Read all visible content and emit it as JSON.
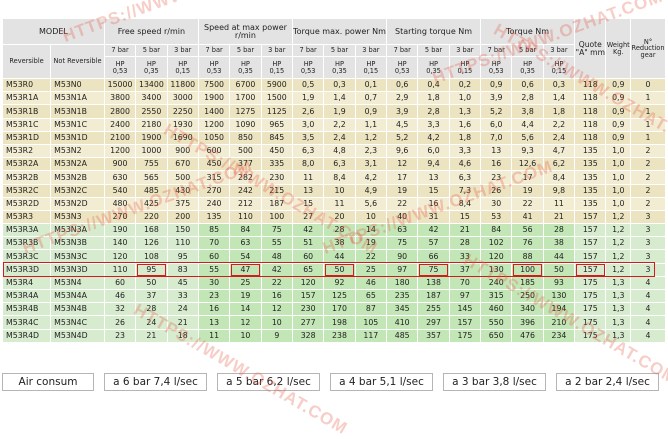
{
  "header": {
    "model": "MODEL",
    "groups": {
      "free_speed": "Free speed r/min",
      "speed_max_power": "Speed at max power r/min",
      "torque_max_power": "Torque max. power Nm",
      "starting_torque": "Starting torque Nm",
      "torque": "Torque Nm",
      "quote": "Quote \"A\" mm",
      "weight": "Weight Kg.",
      "reduction": "N° Reduction gear"
    },
    "reversible": "Reversible",
    "not_reversible": "Not Reversible",
    "pressures": [
      "7 bar",
      "5 bar",
      "3 bar"
    ],
    "hp": [
      "HP",
      "HP",
      "HP"
    ],
    "hp_values": [
      "0,53",
      "0,35",
      "0,15"
    ]
  },
  "rows": [
    {
      "rev": "M53R0",
      "notrev": "M53N0",
      "v": [
        "15000",
        "13400",
        "11800",
        "7500",
        "6700",
        "5900",
        "0,5",
        "0,3",
        "0,1",
        "0,6",
        "0,4",
        "0,2",
        "0,9",
        "0,6",
        "0,3",
        "118",
        "0,9",
        "0"
      ],
      "style": "cream"
    },
    {
      "rev": "M53R1A",
      "notrev": "M53N1A",
      "v": [
        "3800",
        "3400",
        "3000",
        "1900",
        "1700",
        "1500",
        "1,9",
        "1,4",
        "0,7",
        "2,9",
        "1,8",
        "1,0",
        "3,9",
        "2,8",
        "1,4",
        "118",
        "0,9",
        "1"
      ],
      "style": "light"
    },
    {
      "rev": "M53R1B",
      "notrev": "M53N1B",
      "v": [
        "2800",
        "2550",
        "2250",
        "1400",
        "1275",
        "1125",
        "2,6",
        "1,9",
        "0,9",
        "3,9",
        "2,8",
        "1,3",
        "5,2",
        "3,8",
        "1,8",
        "118",
        "0,9",
        "1"
      ],
      "style": "cream"
    },
    {
      "rev": "M53R1C",
      "notrev": "M53N1C",
      "v": [
        "2400",
        "2180",
        "1930",
        "1200",
        "1090",
        "965",
        "3,0",
        "2,2",
        "1,1",
        "4,5",
        "3,3",
        "1,6",
        "6,0",
        "4,4",
        "2,2",
        "118",
        "0,9",
        "1"
      ],
      "style": "light"
    },
    {
      "rev": "M53R1D",
      "notrev": "M53N1D",
      "v": [
        "2100",
        "1900",
        "1690",
        "1050",
        "850",
        "845",
        "3,5",
        "2,4",
        "1,2",
        "5,2",
        "4,2",
        "1,8",
        "7,0",
        "5,6",
        "2,4",
        "118",
        "0,9",
        "1"
      ],
      "style": "cream"
    },
    {
      "rev": "M53R2",
      "notrev": "M53N2",
      "v": [
        "1200",
        "1000",
        "900",
        "600",
        "500",
        "450",
        "6,3",
        "4,8",
        "2,3",
        "9,6",
        "6,0",
        "3,3",
        "13",
        "9,3",
        "4,7",
        "135",
        "1,0",
        "2"
      ],
      "style": "light"
    },
    {
      "rev": "M53R2A",
      "notrev": "M53N2A",
      "v": [
        "900",
        "755",
        "670",
        "450",
        "377",
        "335",
        "8,0",
        "6,3",
        "3,1",
        "12",
        "9,4",
        "4,6",
        "16",
        "12,6",
        "6,2",
        "135",
        "1,0",
        "2"
      ],
      "style": "cream"
    },
    {
      "rev": "M53R2B",
      "notrev": "M53N2B",
      "v": [
        "630",
        "565",
        "500",
        "315",
        "282",
        "230",
        "11",
        "8,4",
        "4,2",
        "17",
        "13",
        "6,3",
        "23",
        "17",
        "8,4",
        "135",
        "1,0",
        "2"
      ],
      "style": "light"
    },
    {
      "rev": "M53R2C",
      "notrev": "M53N2C",
      "v": [
        "540",
        "485",
        "430",
        "270",
        "242",
        "215",
        "13",
        "10",
        "4,9",
        "19",
        "15",
        "7,3",
        "26",
        "19",
        "9,8",
        "135",
        "1,0",
        "2"
      ],
      "style": "cream"
    },
    {
      "rev": "M53R2D",
      "notrev": "M53N2D",
      "v": [
        "480",
        "425",
        "375",
        "240",
        "212",
        "187",
        "15",
        "11",
        "5,6",
        "22",
        "16",
        "8,4",
        "30",
        "22",
        "11",
        "135",
        "1,0",
        "2"
      ],
      "style": "light"
    },
    {
      "rev": "M53R3",
      "notrev": "M53N3",
      "v": [
        "270",
        "220",
        "200",
        "135",
        "110",
        "100",
        "27",
        "20",
        "10",
        "40",
        "31",
        "15",
        "53",
        "41",
        "21",
        "157",
        "1,2",
        "3"
      ],
      "style": "cream"
    },
    {
      "rev": "M53R3A",
      "notrev": "M53N3A",
      "v": [
        "190",
        "168",
        "150",
        "85",
        "84",
        "75",
        "42",
        "28",
        "14",
        "63",
        "42",
        "21",
        "84",
        "56",
        "28",
        "157",
        "1,2",
        "3"
      ],
      "style": "green"
    },
    {
      "rev": "M53R3B",
      "notrev": "M53N3B",
      "v": [
        "140",
        "126",
        "110",
        "70",
        "63",
        "55",
        "51",
        "38",
        "19",
        "75",
        "57",
        "28",
        "102",
        "76",
        "38",
        "157",
        "1,2",
        "3"
      ],
      "style": "green"
    },
    {
      "rev": "M53R3C",
      "notrev": "M53N3C",
      "v": [
        "120",
        "108",
        "95",
        "60",
        "54",
        "48",
        "60",
        "44",
        "22",
        "90",
        "66",
        "33",
        "120",
        "88",
        "44",
        "157",
        "1,2",
        "3"
      ],
      "style": "green"
    },
    {
      "rev": "M53R3D",
      "notrev": "M53N3D",
      "v": [
        "110",
        "95",
        "83",
        "55",
        "47",
        "42",
        "65",
        "50",
        "25",
        "97",
        "75",
        "37",
        "130",
        "100",
        "50",
        "157",
        "1,2",
        "3"
      ],
      "style": "green",
      "highlight": true
    },
    {
      "rev": "M53R4",
      "notrev": "M53N4",
      "v": [
        "60",
        "50",
        "45",
        "30",
        "25",
        "22",
        "120",
        "92",
        "46",
        "180",
        "138",
        "70",
        "240",
        "185",
        "93",
        "175",
        "1,3",
        "4"
      ],
      "style": "green"
    },
    {
      "rev": "M53R4A",
      "notrev": "M53N4A",
      "v": [
        "46",
        "37",
        "33",
        "23",
        "19",
        "16",
        "157",
        "125",
        "65",
        "235",
        "187",
        "97",
        "315",
        "250",
        "130",
        "175",
        "1,3",
        "4"
      ],
      "style": "green"
    },
    {
      "rev": "M53R4B",
      "notrev": "M53N4B",
      "v": [
        "32",
        "28",
        "24",
        "16",
        "14",
        "12",
        "230",
        "170",
        "87",
        "345",
        "255",
        "145",
        "460",
        "340",
        "194",
        "175",
        "1,3",
        "4"
      ],
      "style": "green"
    },
    {
      "rev": "M53R4C",
      "notrev": "M53N4C",
      "v": [
        "26",
        "24",
        "21",
        "13",
        "12",
        "10",
        "277",
        "198",
        "105",
        "410",
        "297",
        "157",
        "550",
        "396",
        "210",
        "175",
        "1,3",
        "4"
      ],
      "style": "green"
    },
    {
      "rev": "M53R4D",
      "notrev": "M53N4D",
      "v": [
        "23",
        "21",
        "18",
        "11",
        "10",
        "9",
        "328",
        "238",
        "117",
        "485",
        "357",
        "175",
        "650",
        "476",
        "234",
        "175",
        "1,3",
        "4"
      ],
      "style": "green"
    }
  ],
  "air_consumption": {
    "label": "Air consum",
    "items": [
      "a 6 bar 7,4 l/sec",
      "a 5 bar 6,2 l/sec",
      "a 4 bar 5,1 l/sec",
      "a 3 bar 3,8 l/sec",
      "a 2 bar 2,4 l/sec"
    ]
  },
  "watermark": "HTTPS://WWW.OZHAT.COM",
  "colors": {
    "header_bg": "#e3e3e3",
    "row_cream": "#ece4c0",
    "row_light": "#f2ecd2",
    "row_green": "#d7ebcf",
    "highlight": "#d21c1c",
    "watermark": "#e65a46"
  }
}
